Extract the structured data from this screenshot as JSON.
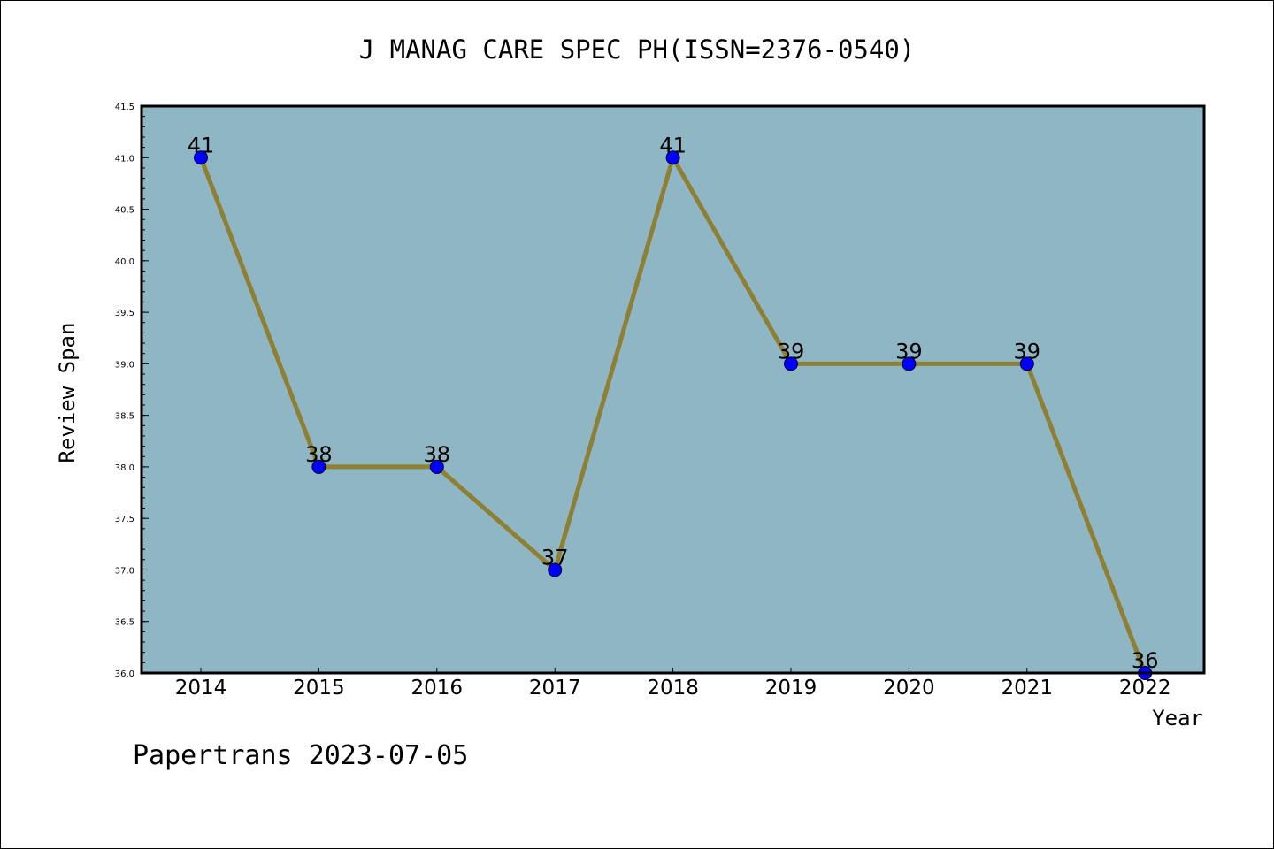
{
  "chart_data": {
    "type": "line",
    "title": "J MANAG CARE SPEC PH(ISSN=2376-0540)",
    "xlabel": "Year",
    "ylabel": "Review Span",
    "categories": [
      "2014",
      "2015",
      "2016",
      "2017",
      "2018",
      "2019",
      "2020",
      "2021",
      "2022"
    ],
    "values": [
      41,
      38,
      38,
      37,
      41,
      39,
      39,
      39,
      36
    ],
    "data_labels": [
      "41",
      "38",
      "38",
      "37",
      "41",
      "39",
      "39",
      "39",
      "36"
    ],
    "ylim": [
      36.0,
      41.5
    ],
    "yticks": [
      "36.0",
      "36.5",
      "37.0",
      "37.5",
      "38.0",
      "38.5",
      "39.0",
      "39.5",
      "40.0",
      "40.5",
      "41.0",
      "41.5"
    ],
    "grid": false,
    "legend": "none",
    "colors": {
      "plot_background": "#8fb6c4",
      "line": "#8f7f33",
      "marker": "#0000ff",
      "marker_edge": "#000033"
    }
  },
  "footer": {
    "text": "Papertrans 2023-07-05"
  }
}
